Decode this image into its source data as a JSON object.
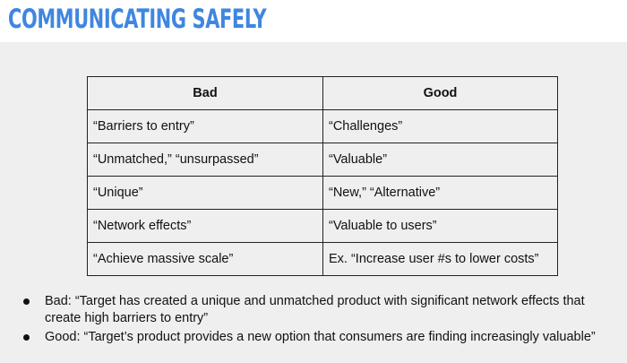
{
  "title": "COMMUNICATING SAFELY",
  "table": {
    "headers": [
      "Bad",
      "Good"
    ],
    "rows": [
      [
        "“Barriers to entry”",
        "“Challenges”"
      ],
      [
        "“Unmatched,” “unsurpassed”",
        "“Valuable”"
      ],
      [
        "“Unique”",
        "“New,” “Alternative”"
      ],
      [
        "“Network effects”",
        "“Valuable to users”"
      ],
      [
        "“Achieve massive scale”",
        "Ex. “Increase user #s to lower costs”"
      ]
    ]
  },
  "bullets": [
    "Bad: “Target has created a unique and unmatched product with significant network effects that create high barriers to entry”",
    "Good: “Target’s product provides a new option that consumers are finding increasingly valuable”"
  ],
  "colors": {
    "title": "#3f86e0",
    "content_bg": "#efefef"
  }
}
